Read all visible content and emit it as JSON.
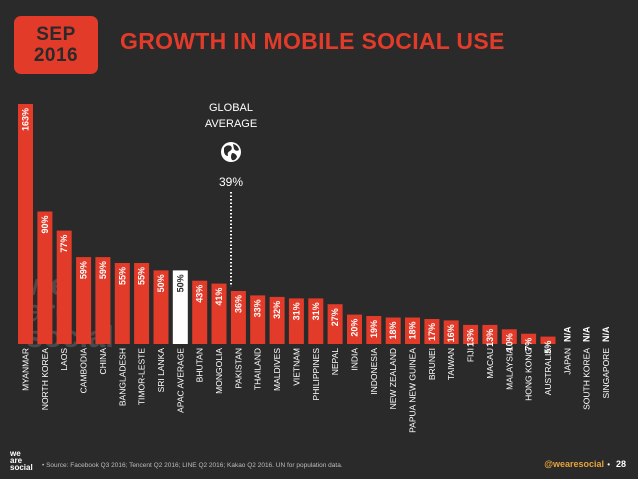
{
  "header": {
    "month": "SEP",
    "year": "2016",
    "title": "GROWTH IN MOBILE SOCIAL USE"
  },
  "watermark": [
    "we",
    "are",
    "social"
  ],
  "footer": {
    "logo": [
      "we",
      "are",
      "social"
    ],
    "source": "• Source: Facebook Q3 2016; Tencent Q2 2016; LINE Q2 2016; Kakao Q2 2016. UN for population data.",
    "handle": "@wearesocial",
    "separator": "•",
    "page": "28"
  },
  "colors": {
    "background": "#2a2a2a",
    "bar": "#e23b2a",
    "highlight_bar": "#ffffff",
    "global_line": "#ffffff"
  },
  "chart_data": {
    "type": "bar",
    "title": "GROWTH IN MOBILE SOCIAL USE",
    "xlabel": "",
    "ylabel": "",
    "categories": [
      "MYANMAR",
      "NORTH KOREA",
      "LAOS",
      "CAMBODIA",
      "CHINA",
      "BANGLADESH",
      "TIMOR-LESTE",
      "SRI LANKA",
      "APAC AVERAGE",
      "BHUTAN",
      "MONGOLIA",
      "PAKISTAN",
      "THAILAND",
      "MALDIVES",
      "VIETNAM",
      "PHILIPPINES",
      "NEPAL",
      "INDIA",
      "INDONESIA",
      "NEW ZEALAND",
      "PAPUA NEW GUINEA",
      "BRUNEI",
      "TAIWAN",
      "FIJI",
      "MACAU",
      "MALAYSIA",
      "HONG KONG",
      "AUSTRALIA",
      "JAPAN",
      "SOUTH KOREA",
      "SINGAPORE"
    ],
    "values": [
      163,
      90,
      77,
      59,
      59,
      55,
      55,
      50,
      50,
      43,
      41,
      36,
      33,
      32,
      31,
      31,
      27,
      20,
      19,
      18,
      18,
      17,
      16,
      13,
      13,
      10,
      7,
      5,
      null,
      null,
      null
    ],
    "labels": [
      "163%",
      "90%",
      "77%",
      "59%",
      "59%",
      "55%",
      "55%",
      "50%",
      "50%",
      "43%",
      "41%",
      "36%",
      "33%",
      "32%",
      "31%",
      "31%",
      "27%",
      "20%",
      "19%",
      "18%",
      "18%",
      "17%",
      "16%",
      "13%",
      "13%",
      "10%",
      "7%",
      "5%",
      "N/A",
      "N/A",
      "N/A"
    ],
    "highlight_category": "APAC AVERAGE",
    "global_average": {
      "label_line1": "GLOBAL",
      "label_line2": "AVERAGE",
      "value": 39,
      "label": "39%"
    },
    "ylim": [
      0,
      163
    ]
  }
}
